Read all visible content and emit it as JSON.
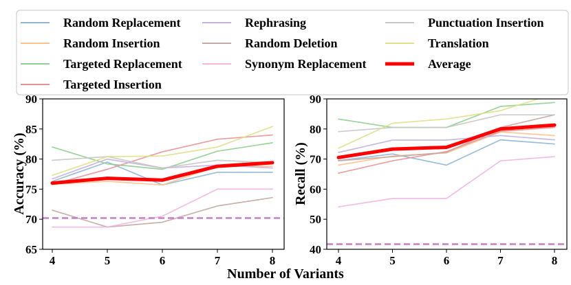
{
  "figure": {
    "xlabel": "Number of Variants"
  },
  "colors": {
    "Random Replacement": "#8fb6d6",
    "Random Insertion": "#ffc28f",
    "Targeted Replacement": "#8fcf8f",
    "Targeted Insertion": "#e89393",
    "Rephrasing": "#c4b2dc",
    "Random Deletion": "#c4a8a2",
    "Synonym Replacement": "#f2b6e0",
    "Punctuation Insertion": "#c6c6c6",
    "Translation": "#dfe08a",
    "Average": "#ff0000",
    "baseline": "#c77fc9"
  },
  "legend": {
    "placement": "top",
    "entries": [
      "Random Replacement",
      "Rephrasing",
      "Punctuation Insertion",
      "Random Insertion",
      "Random Deletion",
      "Translation",
      "Targeted Replacement",
      "Synonym Replacement",
      "Average",
      "Targeted Insertion"
    ]
  },
  "chart_data": [
    {
      "type": "line",
      "ylabel": "Accuracy (%)",
      "xlabel": "Number of Variants",
      "x": [
        4,
        5,
        6,
        7,
        8
      ],
      "ylim": [
        65,
        90
      ],
      "yticks": [
        65,
        70,
        75,
        80,
        85,
        90
      ],
      "grid": false,
      "baseline": 70.2,
      "series": [
        {
          "name": "Random Replacement",
          "values": [
            76.3,
            79.5,
            75.7,
            77.8,
            77.8
          ]
        },
        {
          "name": "Random Insertion",
          "values": [
            75.8,
            76.3,
            75.7,
            78.8,
            78.8
          ]
        },
        {
          "name": "Targeted Replacement",
          "values": [
            82.0,
            79.2,
            78.3,
            81.3,
            82.7
          ]
        },
        {
          "name": "Targeted Insertion",
          "values": [
            75.8,
            78.3,
            81.2,
            83.3,
            84.0
          ]
        },
        {
          "name": "Rephrasing",
          "values": [
            76.7,
            80.0,
            78.5,
            79.0,
            78.5
          ]
        },
        {
          "name": "Random Deletion",
          "values": [
            71.5,
            68.7,
            69.5,
            72.2,
            73.6
          ]
        },
        {
          "name": "Synonym Replacement",
          "values": [
            68.7,
            68.7,
            70.5,
            75.0,
            75.0
          ]
        },
        {
          "name": "Punctuation Insertion",
          "values": [
            79.8,
            80.4,
            78.5,
            79.8,
            79.4
          ]
        },
        {
          "name": "Translation",
          "values": [
            77.3,
            80.4,
            80.5,
            82.0,
            85.4
          ]
        },
        {
          "name": "Average",
          "values": [
            76.0,
            76.8,
            76.5,
            78.8,
            79.4
          ]
        }
      ]
    },
    {
      "type": "line",
      "ylabel": "Recall (%)",
      "xlabel": "Number of Variants",
      "x": [
        4,
        5,
        6,
        7,
        8
      ],
      "ylim": [
        40,
        90
      ],
      "yticks": [
        40,
        50,
        60,
        70,
        80,
        90
      ],
      "grid": false,
      "baseline": 41.7,
      "series": [
        {
          "name": "Random Replacement",
          "values": [
            69.5,
            71.7,
            68.0,
            76.4,
            75.0
          ]
        },
        {
          "name": "Random Insertion",
          "values": [
            68.0,
            71.0,
            72.0,
            79.0,
            77.8
          ]
        },
        {
          "name": "Targeted Replacement",
          "values": [
            83.3,
            80.5,
            80.5,
            87.5,
            88.8
          ]
        },
        {
          "name": "Targeted Insertion",
          "values": [
            65.3,
            69.4,
            72.5,
            79.2,
            80.5
          ]
        },
        {
          "name": "Rephrasing",
          "values": [
            72.2,
            76.3,
            76.3,
            77.8,
            76.4
          ]
        },
        {
          "name": "Random Deletion",
          "values": [
            69.4,
            70.8,
            72.2,
            80.5,
            84.7
          ]
        },
        {
          "name": "Synonym Replacement",
          "values": [
            54.1,
            56.9,
            56.9,
            69.4,
            70.8
          ]
        },
        {
          "name": "Punctuation Insertion",
          "values": [
            79.1,
            80.5,
            80.5,
            84.7,
            84.7
          ]
        },
        {
          "name": "Translation",
          "values": [
            73.6,
            81.9,
            83.3,
            86.1,
            91.7
          ]
        },
        {
          "name": "Average",
          "values": [
            70.5,
            73.3,
            73.9,
            80.0,
            81.3
          ]
        }
      ]
    }
  ]
}
